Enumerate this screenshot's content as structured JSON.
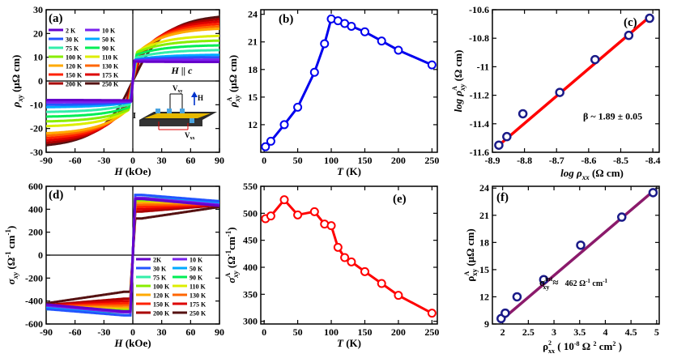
{
  "chart_data": [
    {
      "id": "a",
      "panel_label": "(a)",
      "type": "line",
      "xlabel": "H (kOe)",
      "ylabel": "ρxy (μΩ cm)",
      "xlim": [
        -90,
        90
      ],
      "ylim": [
        -30,
        30
      ],
      "xticks": [
        -90,
        -60,
        -30,
        0,
        30,
        60,
        90
      ],
      "yticks": [
        -30,
        -20,
        -10,
        0,
        10,
        20,
        30
      ],
      "annotation": "H || c",
      "legend": [
        "2 K",
        "10 K",
        "30 K",
        "50 K",
        "75 K",
        "90 K",
        "100 K",
        "110 K",
        "120 K",
        "130 K",
        "150 K",
        "175 K",
        "200 K",
        "250 K"
      ],
      "legend_placement": "upper-left",
      "inset_labels": [
        "I",
        "Vxy",
        "Vxx",
        "H"
      ],
      "colors": [
        "#6600cc",
        "#7a22ee",
        "#2255ff",
        "#00aaff",
        "#33eeaa",
        "#00ee55",
        "#88ee00",
        "#ddee00",
        "#ffaa00",
        "#ff6600",
        "#ff2200",
        "#dd0000",
        "#aa0000",
        "#551111"
      ],
      "series_shape": {
        "jump_at_plateau": [
          8.2,
          8.6,
          8.8,
          9.0,
          9.8,
          11.0,
          12.0,
          12.3,
          12.0,
          11.5,
          11.0,
          10.5,
          9.0,
          6.0
        ],
        "value_at_90kOe": [
          8,
          9,
          10,
          11,
          13,
          15,
          17,
          19,
          22,
          23,
          24,
          25,
          26,
          27
        ]
      }
    },
    {
      "id": "b",
      "panel_label": "(b)",
      "type": "line",
      "xlabel": "T (K)",
      "ylabel": "ρAxy (μΩ cm)",
      "xlim": [
        -5,
        258
      ],
      "ylim": [
        9,
        24.5
      ],
      "xticks": [
        0,
        50,
        100,
        150,
        200,
        250
      ],
      "yticks": [
        12,
        15,
        18,
        21,
        24
      ],
      "color": "#0000ee",
      "x": [
        2,
        10,
        30,
        50,
        75,
        90,
        100,
        110,
        120,
        130,
        150,
        175,
        200,
        250
      ],
      "y": [
        9.6,
        10.2,
        12.0,
        13.9,
        17.7,
        20.8,
        23.5,
        23.3,
        23.0,
        22.7,
        22.1,
        21.1,
        20.1,
        18.5
      ]
    },
    {
      "id": "c",
      "panel_label": "(c)",
      "type": "scatter",
      "xlabel": "log ρxx (Ω cm)",
      "ylabel": "log ρAxy (Ω cm)",
      "xlim": [
        -8.9,
        -8.38
      ],
      "ylim": [
        -11.6,
        -10.6
      ],
      "xticks": [
        -8.9,
        -8.8,
        -8.7,
        -8.6,
        -8.5,
        -8.4
      ],
      "yticks": [
        -11.6,
        -11.4,
        -11.2,
        -11.0,
        -10.8,
        -10.6
      ],
      "annotation": "β ~ 1.89 ± 0.05",
      "fit_color": "#ff0000",
      "marker_color": "#1a1a88",
      "fit_line": {
        "x": [
          -8.89,
          -8.41
        ],
        "y": [
          -11.57,
          -10.65
        ]
      },
      "x": [
        -8.88,
        -8.855,
        -8.805,
        -8.69,
        -8.58,
        -8.475,
        -8.41
      ],
      "y": [
        -11.55,
        -11.49,
        -11.33,
        -11.18,
        -10.95,
        -10.78,
        -10.66
      ]
    },
    {
      "id": "d",
      "panel_label": "(d)",
      "type": "line",
      "xlabel": "H (kOe)",
      "ylabel": "σxy (Ω-1 cm-1)",
      "xlim": [
        -90,
        90
      ],
      "ylim": [
        -600,
        600
      ],
      "xticks": [
        -90,
        -60,
        -30,
        0,
        30,
        60,
        90
      ],
      "yticks": [
        -600,
        -400,
        -200,
        0,
        200,
        400,
        600
      ],
      "legend": [
        "2K",
        "10 K",
        "30 K",
        "50 K",
        "75 K",
        "90 K",
        "100 K",
        "110 K",
        "120 K",
        "130 K",
        "150 K",
        "175 K",
        "200 K",
        "250 K"
      ],
      "legend_placement": "lower-right",
      "colors": [
        "#6600cc",
        "#7a22ee",
        "#2255ff",
        "#00aaff",
        "#33eeaa",
        "#00ee55",
        "#88ee00",
        "#ddee00",
        "#ffaa00",
        "#ff6600",
        "#ff2200",
        "#dd0000",
        "#aa0000",
        "#551111"
      ],
      "series_shape": {
        "value_at_plateau": [
          490,
          500,
          525,
          498,
          495,
          500,
          480,
          475,
          460,
          440,
          420,
          400,
          380,
          320
        ],
        "value_at_90kOe": [
          430,
          440,
          470,
          455,
          470,
          470,
          460,
          455,
          450,
          448,
          445,
          440,
          435,
          420
        ]
      }
    },
    {
      "id": "e",
      "panel_label": "(e)",
      "type": "line",
      "xlabel": "T (K)",
      "ylabel": "σAxy (Ω-1 cm-1)",
      "xlim": [
        -5,
        258
      ],
      "ylim": [
        295,
        550
      ],
      "xticks": [
        0,
        50,
        100,
        150,
        200,
        250
      ],
      "yticks": [
        300,
        350,
        400,
        450,
        500,
        550
      ],
      "color": "#ff0000",
      "x": [
        2,
        10,
        30,
        50,
        75,
        90,
        100,
        110,
        120,
        130,
        150,
        175,
        200,
        250
      ],
      "y": [
        490,
        495,
        525,
        497,
        503,
        480,
        477,
        437,
        418,
        410,
        392,
        370,
        348,
        315
      ]
    },
    {
      "id": "f",
      "panel_label": "(f)",
      "type": "scatter",
      "xlabel": "ρ2xx ( 10-8 Ω 2 cm2 )",
      "ylabel": "ρAxy (μΩ cm)",
      "xlim": [
        1.8,
        5.05
      ],
      "ylim": [
        9,
        24.2
      ],
      "xticks": [
        2.0,
        2.5,
        3.0,
        3.5,
        4.0,
        4.5,
        5.0
      ],
      "yticks": [
        9,
        12,
        15,
        18,
        21,
        24
      ],
      "annotation": "σintxy ≈ 462 Ω-1 cm-1",
      "fit_color": "#8b1a6b",
      "marker_color": "#1a1a88",
      "fit_line": {
        "x": [
          1.95,
          4.92
        ],
        "y": [
          9.3,
          23.6
        ]
      },
      "x": [
        1.97,
        2.05,
        2.28,
        2.8,
        3.52,
        4.32,
        4.93
      ],
      "y": [
        9.6,
        10.2,
        12.0,
        13.9,
        17.7,
        20.8,
        23.5
      ]
    }
  ]
}
